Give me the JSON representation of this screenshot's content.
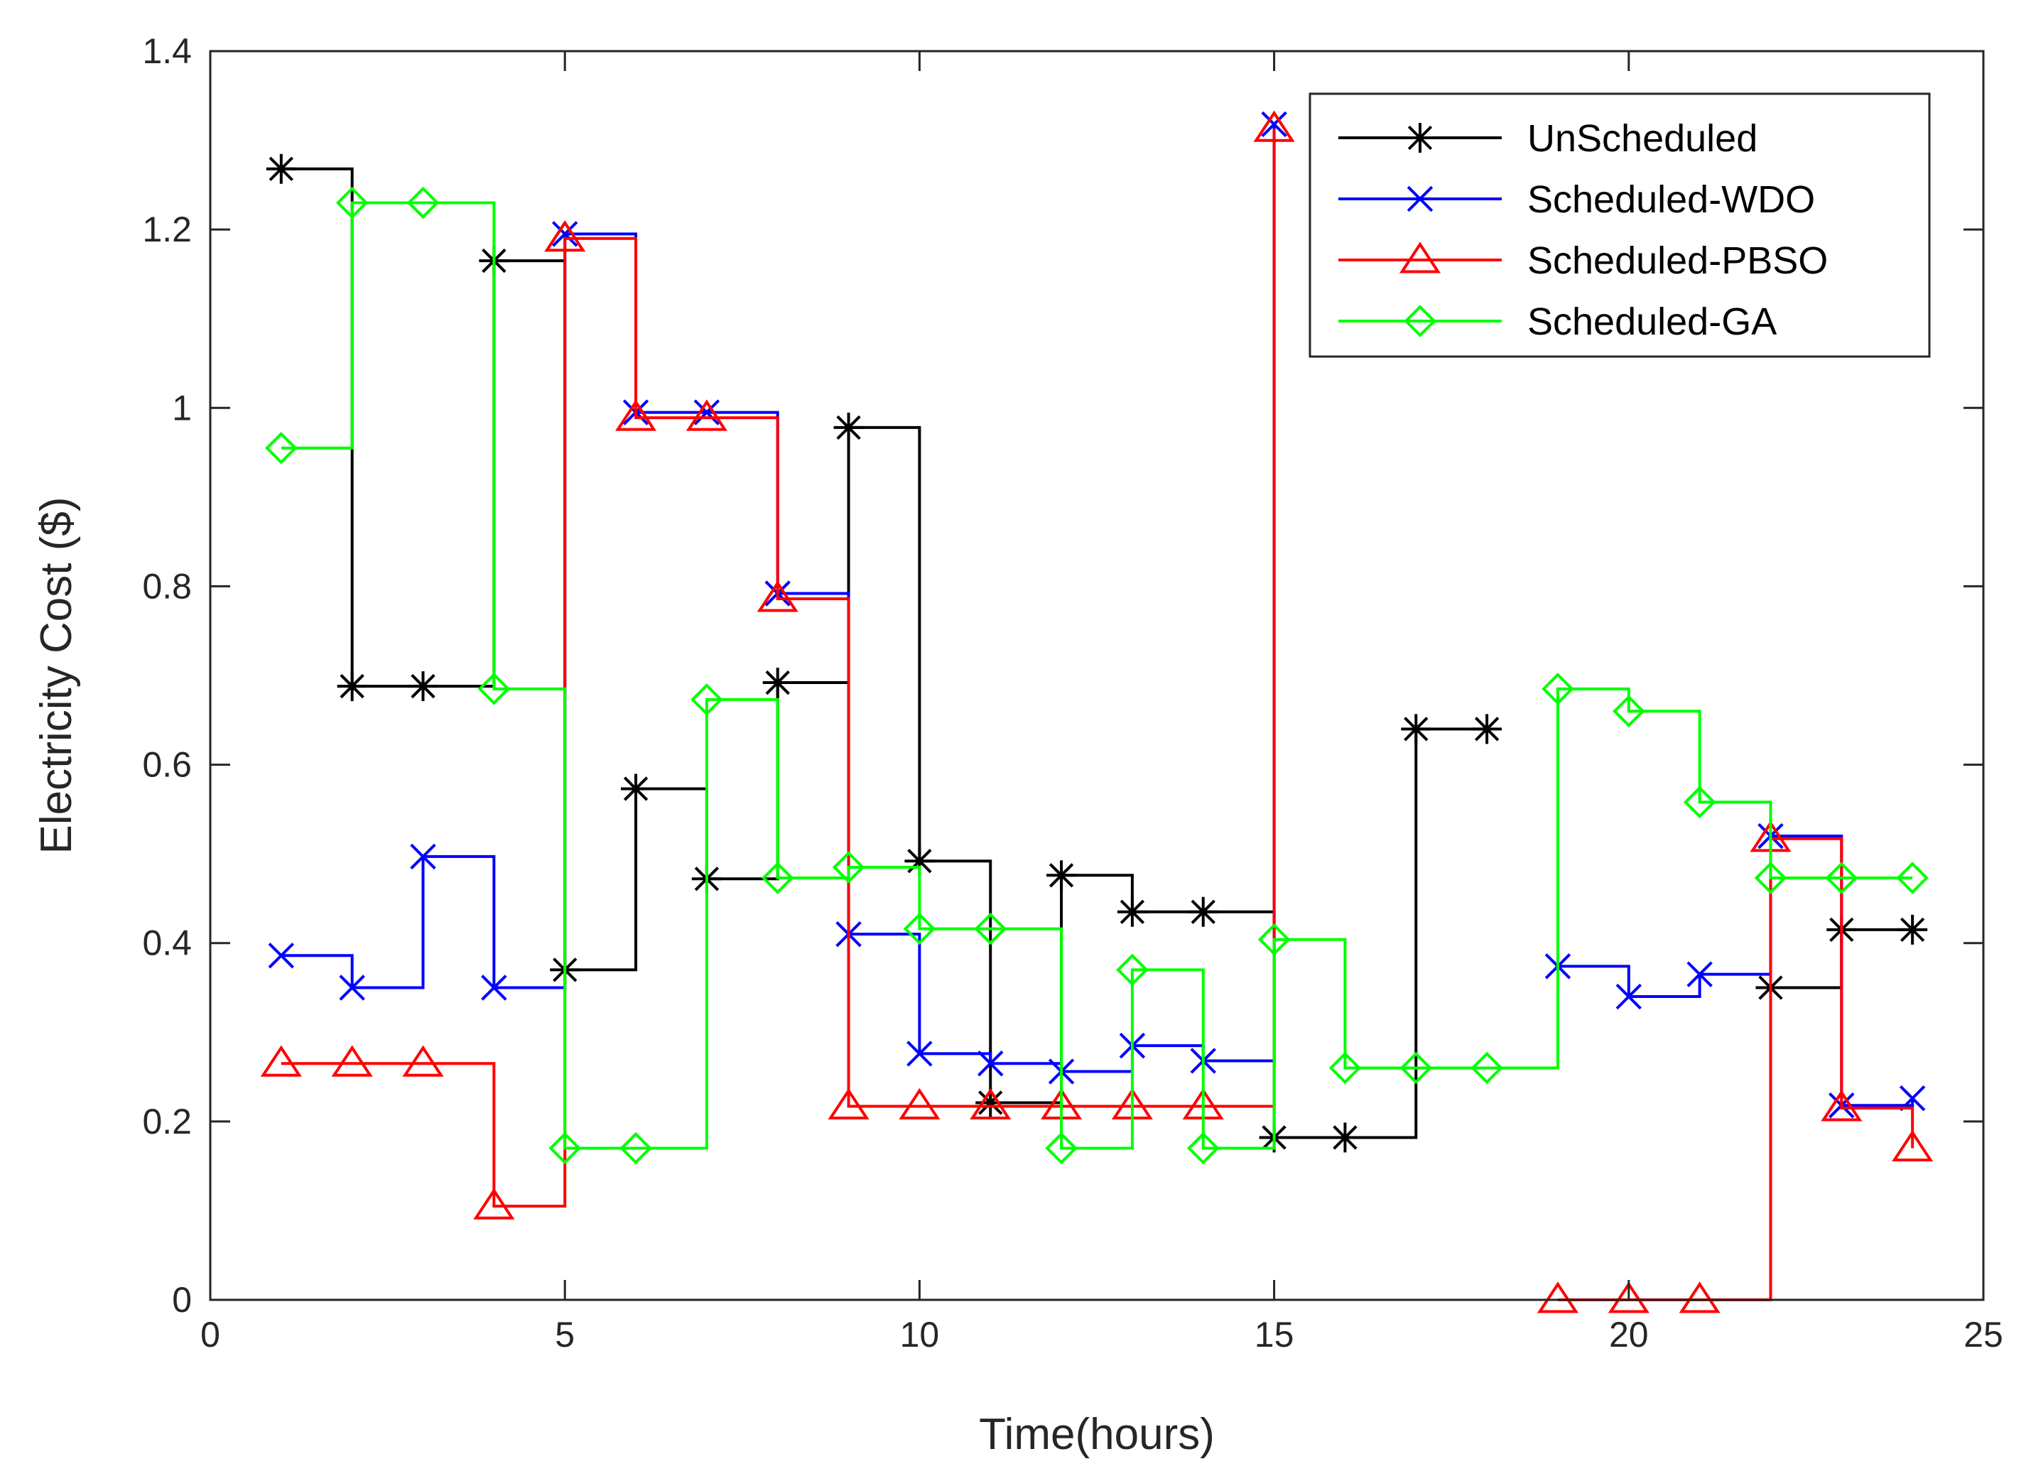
{
  "chart_data": {
    "type": "line",
    "step": "post",
    "title": "",
    "xlabel": "Time(hours)",
    "ylabel": "Electricity Cost ($)",
    "xlim": [
      0,
      25
    ],
    "ylim": [
      0,
      1.4
    ],
    "xticks": [
      0,
      5,
      10,
      15,
      20,
      25
    ],
    "yticks": [
      0,
      0.2,
      0.4,
      0.6,
      0.8,
      1,
      1.2,
      1.4
    ],
    "xtick_labels": [
      "0",
      "5",
      "10",
      "15",
      "20",
      "25"
    ],
    "ytick_labels": [
      "0",
      "0.2",
      "0.4",
      "0.6",
      "0.8",
      "1",
      "1.2",
      "1.4"
    ],
    "grid": false,
    "legend_position": "top-right",
    "x": [
      1,
      2,
      3,
      4,
      5,
      6,
      7,
      8,
      9,
      10,
      11,
      12,
      13,
      14,
      15,
      16,
      17,
      18,
      19,
      20,
      21,
      22,
      23,
      24
    ],
    "series": [
      {
        "name": "UnScheduled",
        "color": "#000000",
        "marker": "asterisk",
        "values": [
          1.268,
          0.688,
          0.688,
          1.165,
          0.37,
          0.573,
          0.472,
          0.692,
          0.978,
          0.492,
          0.221,
          0.476,
          0.435,
          0.435,
          0.182,
          0.182,
          0.64,
          0.64,
          null,
          null,
          null,
          0.35,
          0.415,
          0.415
        ]
      },
      {
        "name": "Scheduled-WDO",
        "color": "#0000ff",
        "marker": "x",
        "values": [
          0.386,
          0.35,
          0.497,
          0.35,
          1.195,
          0.995,
          0.995,
          0.792,
          0.41,
          0.276,
          0.265,
          0.256,
          0.285,
          0.268,
          1.318,
          null,
          null,
          null,
          0.374,
          0.34,
          0.365,
          0.52,
          0.218,
          0.226
        ]
      },
      {
        "name": "Scheduled-PBSO",
        "color": "#ff0000",
        "marker": "triangle",
        "values": [
          0.265,
          0.265,
          0.265,
          0.105,
          1.19,
          0.989,
          0.989,
          0.786,
          0.217,
          0.217,
          0.217,
          0.217,
          0.217,
          0.217,
          1.313,
          null,
          null,
          null,
          0.0,
          0.0,
          0.0,
          0.517,
          0.215,
          0.17
        ]
      },
      {
        "name": "Scheduled-GA",
        "color": "#00ff00",
        "marker": "diamond",
        "values": [
          0.955,
          1.23,
          1.23,
          0.685,
          0.17,
          0.17,
          0.673,
          0.473,
          0.485,
          0.416,
          0.416,
          0.17,
          0.37,
          0.17,
          0.404,
          0.26,
          0.26,
          0.26,
          0.685,
          0.66,
          0.558,
          0.473,
          0.473,
          0.473
        ]
      }
    ]
  }
}
